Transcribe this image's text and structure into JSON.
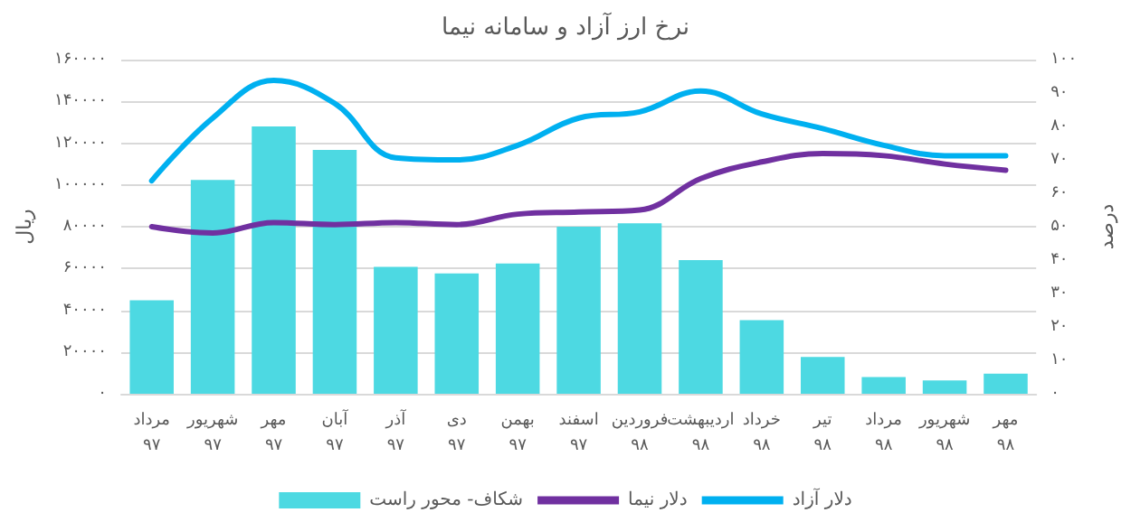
{
  "chart_data": {
    "type": "bar",
    "title": "نرخ ارز آزاد و سامانه نیما",
    "ylabel": "ریال",
    "y2label": "درصد",
    "categories": [
      "مرداد ۹۷",
      "شهریور ۹۷",
      "مهر ۹۷",
      "آبان ۹۷",
      "آذر ۹۷",
      "دی ۹۷",
      "بهمن ۹۷",
      "اسفند ۹۷",
      "فروردین ۹۸",
      "اردیبهشت ۹۸",
      "خرداد ۹۸",
      "تیر ۹۸",
      "مرداد ۹۸",
      "شهریور ۹۸",
      "مهر ۹۸"
    ],
    "series": [
      {
        "name": "شکاف- محور راست",
        "axis": "y2",
        "color": "#4dd9e2",
        "values": [
          28,
          64,
          80,
          73,
          38,
          36,
          39,
          50,
          51,
          40,
          22,
          11,
          5,
          4,
          6
        ]
      },
      {
        "name": "دلار نیما",
        "type": "line",
        "color": "#7030a0",
        "values": [
          80000,
          77000,
          82000,
          81000,
          82000,
          81000,
          86000,
          87000,
          88000,
          103000,
          111000,
          115000,
          114000,
          110000,
          107000
        ]
      },
      {
        "name": "دلار آزاد",
        "type": "line",
        "color": "#00b0f0",
        "values": [
          102000,
          132000,
          150000,
          139000,
          113000,
          112000,
          119000,
          132000,
          135000,
          145000,
          134000,
          127000,
          119000,
          114000,
          114000
        ]
      }
    ],
    "ylim": [
      0,
      160000
    ],
    "yticks": [
      {
        "value": 0,
        "label": "۰"
      },
      {
        "value": 20000,
        "label": "۲۰۰۰۰"
      },
      {
        "value": 40000,
        "label": "۴۰۰۰۰"
      },
      {
        "value": 60000,
        "label": "۶۰۰۰۰"
      },
      {
        "value": 80000,
        "label": "۸۰۰۰۰"
      },
      {
        "value": 100000,
        "label": "۱۰۰۰۰۰"
      },
      {
        "value": 120000,
        "label": "۱۲۰۰۰۰"
      },
      {
        "value": 140000,
        "label": "۱۴۰۰۰۰"
      },
      {
        "value": 160000,
        "label": "۱۶۰۰۰۰"
      }
    ],
    "y2lim": [
      0,
      100
    ],
    "y2ticks": [
      {
        "value": 0,
        "label": "۰"
      },
      {
        "value": 10,
        "label": "۱۰"
      },
      {
        "value": 20,
        "label": "۲۰"
      },
      {
        "value": 30,
        "label": "۳۰"
      },
      {
        "value": 40,
        "label": "۴۰"
      },
      {
        "value": 50,
        "label": "۵۰"
      },
      {
        "value": 60,
        "label": "۶۰"
      },
      {
        "value": 70,
        "label": "۷۰"
      },
      {
        "value": 80,
        "label": "۸۰"
      },
      {
        "value": 90,
        "label": "۹۰"
      },
      {
        "value": 100,
        "label": "۱۰۰"
      }
    ],
    "grid": "y",
    "legend": "bottom",
    "marker": "none",
    "line_style": "solid"
  }
}
